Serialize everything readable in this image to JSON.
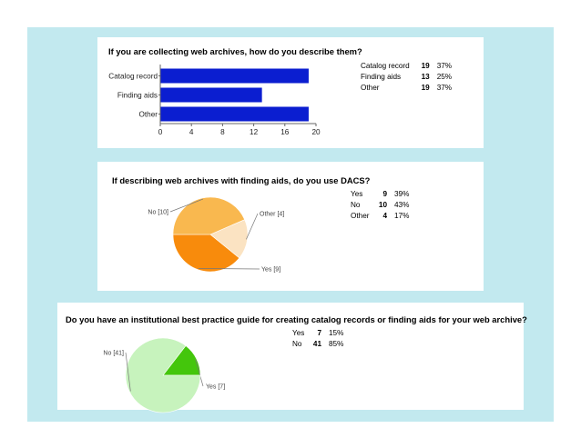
{
  "colors": {
    "background": "#c2e9ef",
    "bar": "#0b1ed0",
    "pie2": [
      "#f88b0c",
      "#fbe3c2",
      "#f9b84f"
    ],
    "pie3": [
      "#44c60c",
      "#c7f3bd"
    ]
  },
  "panel1": {
    "title": "If you are collecting web archives, how do you describe them?",
    "stats": [
      {
        "label": "Catalog record",
        "count": "19",
        "pct": "37%"
      },
      {
        "label": "Finding aids",
        "count": "13",
        "pct": "25%"
      },
      {
        "label": "Other",
        "count": "19",
        "pct": "37%"
      }
    ]
  },
  "panel2": {
    "title": "If describing web archives with finding aids, do you use DACS?",
    "stats": [
      {
        "label": "Yes",
        "count": "9",
        "pct": "39%"
      },
      {
        "label": "No",
        "count": "10",
        "pct": "43%"
      },
      {
        "label": "Other",
        "count": "4",
        "pct": "17%"
      }
    ]
  },
  "panel3": {
    "title": "Do you have an institutional best practice guide for creating catalog records or finding aids for your web archive?",
    "stats": [
      {
        "label": "Yes",
        "count": "7",
        "pct": "15%"
      },
      {
        "label": "No",
        "count": "41",
        "pct": "85%"
      }
    ]
  },
  "chart_data": [
    {
      "type": "bar",
      "orientation": "horizontal",
      "title": "If you are collecting web archives, how do you describe them?",
      "categories": [
        "Catalog record",
        "Finding aids",
        "Other"
      ],
      "values": [
        19,
        13,
        19
      ],
      "xlim": [
        0,
        20
      ],
      "xticks": [
        "0",
        "4",
        "8",
        "12",
        "16",
        "20"
      ],
      "grid": false
    },
    {
      "type": "pie",
      "title": "If describing web archives with finding aids, do you use DACS?",
      "slices": [
        {
          "category": "Yes",
          "value": 9,
          "label": "Yes [9]"
        },
        {
          "category": "Other",
          "value": 4,
          "label": "Other [4]"
        },
        {
          "category": "No",
          "value": 10,
          "label": "No [10]"
        }
      ]
    },
    {
      "type": "pie",
      "title": "Do you have an institutional best practice guide for creating catalog records or finding aids for your web archive?",
      "slices": [
        {
          "category": "Yes",
          "value": 7,
          "label": "Yes [7]"
        },
        {
          "category": "No",
          "value": 41,
          "label": "No [41]"
        }
      ]
    }
  ]
}
